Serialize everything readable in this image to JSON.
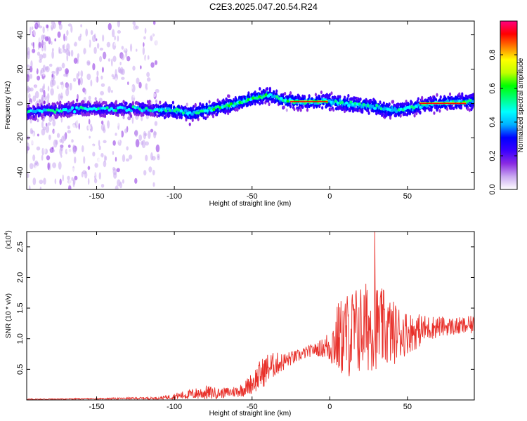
{
  "title": "C2E3.2025.047.20.54.R24",
  "chart_data": [
    {
      "type": "heatmap",
      "xlabel": "Height of straight line (km)",
      "ylabel": "Frequency (Hz)",
      "xlim": [
        -195,
        93
      ],
      "ylim": [
        -50,
        48
      ],
      "xticks": [
        -150,
        -100,
        -50,
        0,
        50
      ],
      "yticks": [
        -40,
        -20,
        0,
        20,
        40
      ],
      "colorbar": {
        "label": "Normalized spectral amplitude",
        "range": [
          0,
          1
        ],
        "ticks": [
          0.0,
          0.2,
          0.4,
          0.6,
          0.8
        ],
        "tick_labels": [
          "0.0",
          "0.2",
          "0.4",
          "0.6",
          "0.8"
        ],
        "colormap": [
          "#ffffff",
          "#c9a8f0",
          "#8a2be2",
          "#3a00ff",
          "#0000ff",
          "#00b0ff",
          "#00ffff",
          "#00ff80",
          "#00ff00",
          "#c0ff00",
          "#ffff00",
          "#ff8000",
          "#ff0000",
          "#ff0080"
        ]
      },
      "ridge": {
        "x": [
          -195,
          -180,
          -160,
          -140,
          -120,
          -100,
          -90,
          -80,
          -70,
          -60,
          -50,
          -40,
          -35,
          -30,
          -20,
          0,
          10,
          20,
          30,
          40,
          50,
          60,
          70,
          80,
          93
        ],
        "y": [
          -5,
          -4,
          -3,
          -3,
          -3,
          -4,
          -6,
          -4,
          -2,
          0,
          3,
          5,
          4,
          2,
          1,
          1,
          0,
          -1,
          -2,
          -4,
          -3,
          -1,
          0,
          1,
          1
        ]
      },
      "strongest_segments": [
        {
          "x_start": -25,
          "x_end": -2,
          "y": 1
        },
        {
          "x_start": 58,
          "x_end": 88,
          "y": 0
        }
      ],
      "scatter_region_x": [
        -195,
        -110
      ]
    },
    {
      "type": "line",
      "xlabel": "Height of straight line (km)",
      "ylabel": "SNR (10 * v/v)",
      "y_multiplier_label": "(x10",
      "y_multiplier_exp": "4",
      "xlim": [
        -195,
        93
      ],
      "ylim": [
        0,
        2.75
      ],
      "xticks": [
        -150,
        -100,
        -50,
        0,
        50
      ],
      "yticks": [
        0.5,
        1.0,
        1.5,
        2.0,
        2.5
      ],
      "ytick_labels": [
        "0.5",
        "1.0",
        "1.5",
        "2.0",
        "2.5"
      ],
      "series": [
        {
          "color": "#e8302a",
          "x": [
            -195,
            -150,
            -110,
            -100,
            -90,
            -80,
            -70,
            -60,
            -55,
            -50,
            -45,
            -40,
            -35,
            -30,
            -25,
            -20,
            -15,
            -10,
            -5,
            0,
            5,
            10,
            15,
            20,
            25,
            30,
            35,
            40,
            45,
            50,
            55,
            60,
            65,
            70,
            75,
            80,
            85,
            90,
            93
          ],
          "y": [
            0.01,
            0.02,
            0.03,
            0.06,
            0.09,
            0.12,
            0.11,
            0.14,
            0.18,
            0.28,
            0.4,
            0.52,
            0.58,
            0.62,
            0.68,
            0.72,
            0.78,
            0.82,
            0.85,
            0.88,
            1.0,
            1.05,
            1.1,
            1.15,
            1.2,
            1.2,
            1.15,
            1.1,
            1.1,
            1.1,
            1.12,
            1.15,
            1.18,
            1.2,
            1.2,
            1.2,
            1.2,
            1.22,
            1.22
          ],
          "fluctuation": [
            0.01,
            0.01,
            0.02,
            0.05,
            0.08,
            0.12,
            0.08,
            0.1,
            0.12,
            0.18,
            0.25,
            0.25,
            0.2,
            0.15,
            0.12,
            0.1,
            0.1,
            0.1,
            0.15,
            0.3,
            0.6,
            0.7,
            0.75,
            0.75,
            0.75,
            0.7,
            0.65,
            0.55,
            0.45,
            0.35,
            0.3,
            0.25,
            0.2,
            0.18,
            0.15,
            0.15,
            0.15,
            0.15,
            0.15
          ]
        }
      ],
      "peak": {
        "x": 29,
        "y": 2.75
      }
    }
  ]
}
